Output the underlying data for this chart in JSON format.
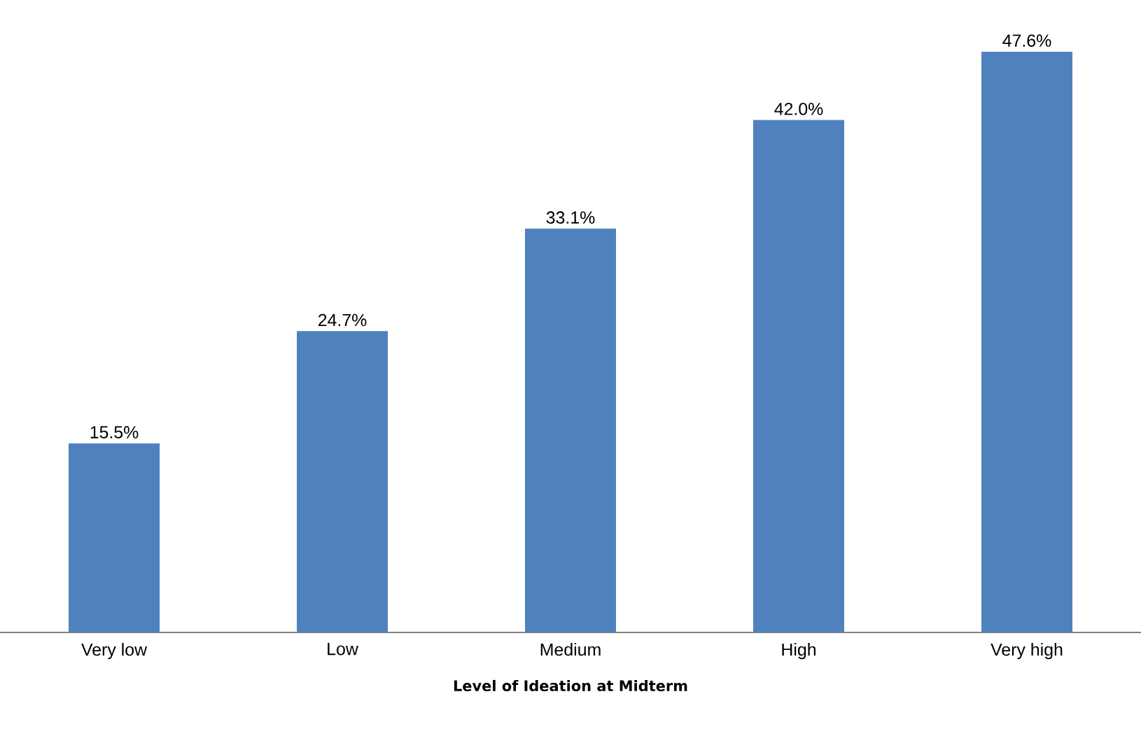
{
  "chart_data": {
    "type": "bar",
    "xlabel": "Level of Ideation at Midterm",
    "categories": [
      "Very low",
      "Low",
      "Medium",
      "High",
      "Very high"
    ],
    "values": [
      15.5,
      24.7,
      33.1,
      42.0,
      47.6
    ],
    "value_labels": [
      "15.5%",
      "24.7%",
      "33.1%",
      "42.0%",
      "47.6%"
    ],
    "color": "#4f81bd"
  }
}
